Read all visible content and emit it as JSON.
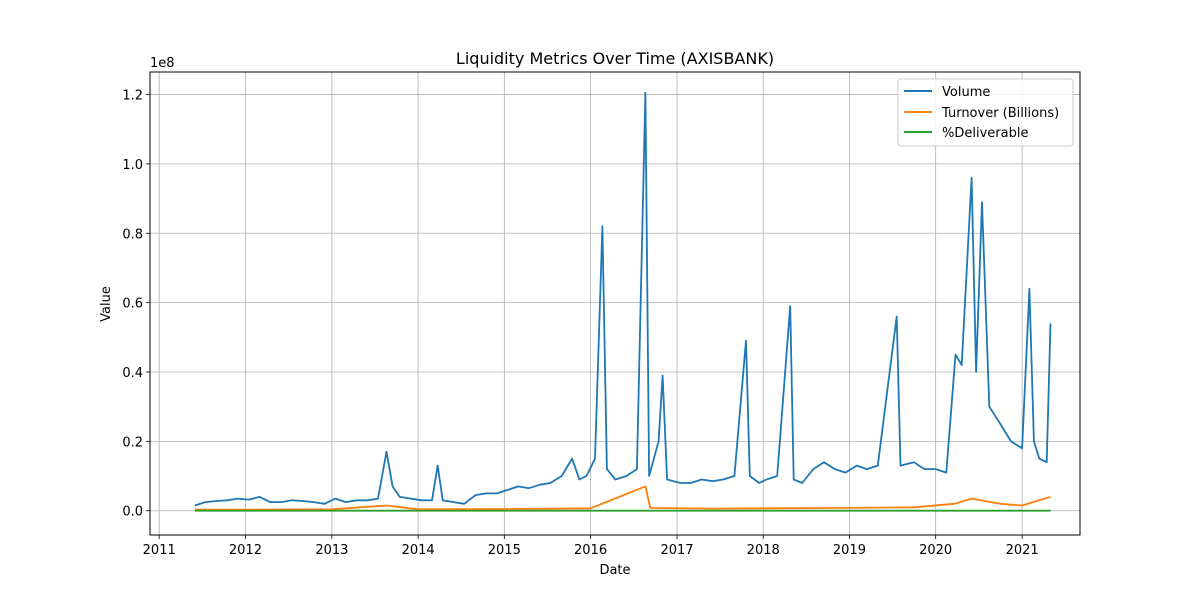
{
  "chart_data": {
    "type": "line",
    "title": "Liquidity Metrics Over Time (AXISBANK)",
    "xlabel": "Date",
    "ylabel": "Value",
    "y_offset_label": "1e8",
    "xlim": [
      "2010-11-23",
      "2021-09-03"
    ],
    "ylim": [
      -7000000,
      126500000
    ],
    "x_ticks": [
      "2011",
      "2012",
      "2013",
      "2014",
      "2015",
      "2016",
      "2017",
      "2018",
      "2019",
      "2020",
      "2021"
    ],
    "y_ticks": [
      {
        "value": 0,
        "label": "0.0"
      },
      {
        "value": 20000000,
        "label": "0.2"
      },
      {
        "value": 40000000,
        "label": "0.4"
      },
      {
        "value": 60000000,
        "label": "0.6"
      },
      {
        "value": 80000000,
        "label": "0.8"
      },
      {
        "value": 100000000,
        "label": "1.0"
      },
      {
        "value": 120000000,
        "label": "1.2"
      }
    ],
    "grid": true,
    "legend_position": "top-right",
    "series": [
      {
        "name": "Volume",
        "color": "#1f77b4",
        "points": [
          [
            "2011-06-01",
            1500000
          ],
          [
            "2011-07-15",
            2500000
          ],
          [
            "2011-09-01",
            2800000
          ],
          [
            "2011-10-15",
            3000000
          ],
          [
            "2011-12-01",
            3500000
          ],
          [
            "2012-01-15",
            3200000
          ],
          [
            "2012-03-01",
            4000000
          ],
          [
            "2012-04-15",
            2500000
          ],
          [
            "2012-06-01",
            2500000
          ],
          [
            "2012-07-15",
            3000000
          ],
          [
            "2012-09-01",
            2800000
          ],
          [
            "2012-10-15",
            2500000
          ],
          [
            "2012-12-01",
            2000000
          ],
          [
            "2013-01-15",
            3500000
          ],
          [
            "2013-03-01",
            2500000
          ],
          [
            "2013-04-15",
            3000000
          ],
          [
            "2013-06-01",
            3000000
          ],
          [
            "2013-07-15",
            3500000
          ],
          [
            "2013-08-20",
            17000000
          ],
          [
            "2013-09-15",
            7000000
          ],
          [
            "2013-10-15",
            4000000
          ],
          [
            "2013-12-01",
            3500000
          ],
          [
            "2014-01-15",
            3000000
          ],
          [
            "2014-03-01",
            3000000
          ],
          [
            "2014-03-25",
            13000000
          ],
          [
            "2014-04-15",
            3000000
          ],
          [
            "2014-06-01",
            2500000
          ],
          [
            "2014-07-15",
            2000000
          ],
          [
            "2014-09-01",
            4500000
          ],
          [
            "2014-10-15",
            5000000
          ],
          [
            "2014-12-01",
            5000000
          ],
          [
            "2015-01-15",
            6000000
          ],
          [
            "2015-03-01",
            7000000
          ],
          [
            "2015-04-15",
            6500000
          ],
          [
            "2015-06-01",
            7500000
          ],
          [
            "2015-07-15",
            8000000
          ],
          [
            "2015-09-01",
            10000000
          ],
          [
            "2015-10-15",
            15000000
          ],
          [
            "2015-11-15",
            9000000
          ],
          [
            "2015-12-15",
            10000000
          ],
          [
            "2016-01-20",
            15000000
          ],
          [
            "2016-02-20",
            82000000
          ],
          [
            "2016-03-10",
            12000000
          ],
          [
            "2016-04-15",
            9000000
          ],
          [
            "2016-06-01",
            10000000
          ],
          [
            "2016-07-15",
            12000000
          ],
          [
            "2016-08-20",
            120500000
          ],
          [
            "2016-09-05",
            10000000
          ],
          [
            "2016-10-15",
            20000000
          ],
          [
            "2016-11-01",
            39000000
          ],
          [
            "2016-11-20",
            9000000
          ],
          [
            "2017-01-15",
            8000000
          ],
          [
            "2017-03-01",
            8000000
          ],
          [
            "2017-04-15",
            9000000
          ],
          [
            "2017-06-01",
            8500000
          ],
          [
            "2017-07-15",
            9000000
          ],
          [
            "2017-09-01",
            10000000
          ],
          [
            "2017-10-20",
            49000000
          ],
          [
            "2017-11-05",
            10000000
          ],
          [
            "2017-12-15",
            8000000
          ],
          [
            "2018-01-15",
            9000000
          ],
          [
            "2018-03-01",
            10000000
          ],
          [
            "2018-04-25",
            59000000
          ],
          [
            "2018-05-10",
            9000000
          ],
          [
            "2018-06-15",
            8000000
          ],
          [
            "2018-08-01",
            12000000
          ],
          [
            "2018-09-15",
            14000000
          ],
          [
            "2018-11-01",
            12000000
          ],
          [
            "2018-12-15",
            11000000
          ],
          [
            "2019-02-01",
            13000000
          ],
          [
            "2019-03-15",
            12000000
          ],
          [
            "2019-05-01",
            13000000
          ],
          [
            "2019-07-20",
            56000000
          ],
          [
            "2019-08-05",
            13000000
          ],
          [
            "2019-10-01",
            14000000
          ],
          [
            "2019-11-15",
            12000000
          ],
          [
            "2020-01-01",
            12000000
          ],
          [
            "2020-02-15",
            11000000
          ],
          [
            "2020-03-25",
            45000000
          ],
          [
            "2020-04-20",
            42000000
          ],
          [
            "2020-06-01",
            96000000
          ],
          [
            "2020-06-20",
            40000000
          ],
          [
            "2020-07-15",
            89000000
          ],
          [
            "2020-08-15",
            30000000
          ],
          [
            "2020-10-01",
            25000000
          ],
          [
            "2020-11-15",
            20000000
          ],
          [
            "2021-01-01",
            18000000
          ],
          [
            "2021-02-01",
            64000000
          ],
          [
            "2021-02-20",
            20000000
          ],
          [
            "2021-03-15",
            15000000
          ],
          [
            "2021-04-15",
            14000000
          ],
          [
            "2021-05-01",
            54000000
          ]
        ]
      },
      {
        "name": "Turnover (Billions)",
        "color": "#ff7f0e",
        "points": [
          [
            "2011-06-01",
            300000
          ],
          [
            "2012-01-01",
            300000
          ],
          [
            "2013-01-01",
            400000
          ],
          [
            "2013-08-20",
            1500000
          ],
          [
            "2014-01-01",
            400000
          ],
          [
            "2015-01-01",
            500000
          ],
          [
            "2016-01-01",
            700000
          ],
          [
            "2016-08-20",
            7000000
          ],
          [
            "2016-09-10",
            800000
          ],
          [
            "2017-06-01",
            600000
          ],
          [
            "2018-01-01",
            700000
          ],
          [
            "2019-01-01",
            800000
          ],
          [
            "2019-10-01",
            1000000
          ],
          [
            "2020-03-20",
            2000000
          ],
          [
            "2020-06-01",
            3500000
          ],
          [
            "2020-10-01",
            2000000
          ],
          [
            "2021-01-01",
            1500000
          ],
          [
            "2021-05-01",
            4000000
          ]
        ]
      },
      {
        "name": "%Deliverable",
        "color": "#2ca02c",
        "points": [
          [
            "2011-06-01",
            50
          ],
          [
            "2014-01-01",
            45
          ],
          [
            "2016-01-01",
            50
          ],
          [
            "2018-01-01",
            48
          ],
          [
            "2020-01-01",
            50
          ],
          [
            "2021-05-01",
            45
          ]
        ]
      }
    ]
  }
}
